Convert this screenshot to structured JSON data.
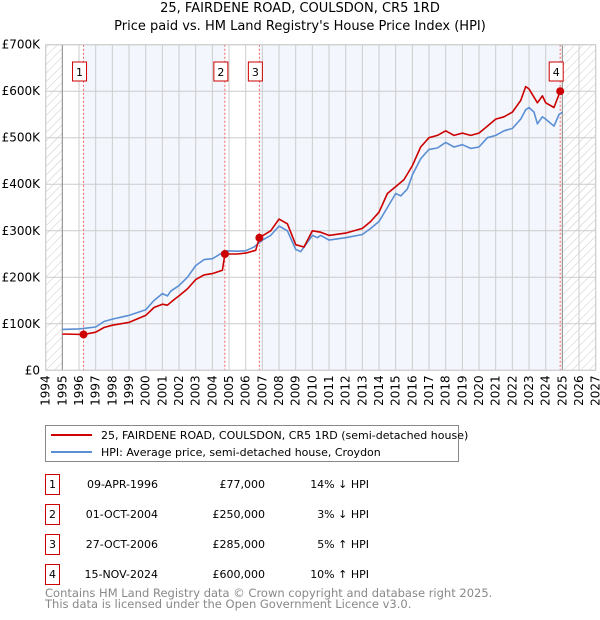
{
  "chart_data": {
    "type": "line",
    "title": "25, FAIRDENE ROAD, COULSDON, CR5 1RD",
    "subtitle": "Price paid vs. HM Land Registry's House Price Index (HPI)",
    "xlim": [
      1994,
      2027
    ],
    "ylim": [
      0,
      700000
    ],
    "x_ticks": [
      "1994",
      "1995",
      "1996",
      "1997",
      "1998",
      "1999",
      "2000",
      "2001",
      "2002",
      "2003",
      "2004",
      "2005",
      "2006",
      "2007",
      "2008",
      "2009",
      "2010",
      "2011",
      "2012",
      "2013",
      "2014",
      "2015",
      "2016",
      "2017",
      "2018",
      "2019",
      "2020",
      "2021",
      "2022",
      "2023",
      "2024",
      "2025",
      "2026",
      "2027"
    ],
    "y_ticks": [
      {
        "v": 0,
        "label": "£0"
      },
      {
        "v": 100000,
        "label": "£100K"
      },
      {
        "v": 200000,
        "label": "£200K"
      },
      {
        "v": 300000,
        "label": "£300K"
      },
      {
        "v": 400000,
        "label": "£400K"
      },
      {
        "v": 500000,
        "label": "£500K"
      },
      {
        "v": 600000,
        "label": "£600K"
      },
      {
        "v": 700000,
        "label": "£700K"
      }
    ],
    "grid": true,
    "data_range": [
      1995,
      2025
    ],
    "series": [
      {
        "name": "25, FAIRDENE ROAD, COULSDON, CR5 1RD (semi-detached house)",
        "color": "#cc0000",
        "x": [
          1995,
          1996.27,
          1997,
          1997.5,
          1998,
          1999,
          2000,
          2000.5,
          2001,
          2001.3,
          2001.7,
          2002,
          2002.5,
          2003,
          2003.5,
          2004,
          2004.6,
          2004.75,
          2005.5,
          2006,
          2006.6,
          2006.82,
          2007.5,
          2008,
          2008.5,
          2009,
          2009.5,
          2010,
          2010.5,
          2011,
          2012,
          2013,
          2013.5,
          2014,
          2014.5,
          2015,
          2015.5,
          2016,
          2016.5,
          2017,
          2017.5,
          2018,
          2018.5,
          2019,
          2019.5,
          2020,
          2020.5,
          2021,
          2021.5,
          2022,
          2022.5,
          2022.8,
          2023,
          2023.5,
          2023.8,
          2024,
          2024.5,
          2024.87
        ],
        "y": [
          78000,
          77000,
          82000,
          92000,
          97000,
          103000,
          118000,
          135000,
          142000,
          140000,
          152000,
          160000,
          175000,
          195000,
          205000,
          208000,
          215000,
          250000,
          250000,
          252000,
          258000,
          285000,
          300000,
          325000,
          315000,
          270000,
          265000,
          300000,
          297000,
          290000,
          295000,
          305000,
          320000,
          340000,
          380000,
          395000,
          410000,
          440000,
          480000,
          500000,
          505000,
          515000,
          505000,
          510000,
          505000,
          510000,
          525000,
          540000,
          545000,
          555000,
          580000,
          610000,
          605000,
          575000,
          590000,
          575000,
          565000,
          600000
        ]
      },
      {
        "name": "HPI: Average price, semi-detached house, Croydon",
        "color": "#5b8fd4",
        "x": [
          1995,
          1996,
          1997,
          1997.5,
          1998,
          1999,
          2000,
          2000.5,
          2001,
          2001.3,
          2001.5,
          2002,
          2002.5,
          2003,
          2003.5,
          2004,
          2004.8,
          2005.5,
          2006,
          2006.5,
          2007,
          2007.5,
          2008,
          2008.5,
          2009,
          2009.3,
          2010,
          2010.3,
          2010.5,
          2011,
          2012,
          2013,
          2013.5,
          2014,
          2014.5,
          2015,
          2015.3,
          2015.7,
          2016,
          2016.5,
          2017,
          2017.5,
          2018,
          2018.5,
          2019,
          2019.5,
          2020,
          2020.5,
          2021,
          2021.5,
          2022,
          2022.5,
          2022.8,
          2023,
          2023.3,
          2023.5,
          2023.8,
          2024,
          2024.5,
          2024.8,
          2025
        ],
        "y": [
          88000,
          89000,
          93000,
          105000,
          110000,
          118000,
          130000,
          150000,
          165000,
          160000,
          170000,
          182000,
          200000,
          225000,
          238000,
          240000,
          257000,
          256000,
          257000,
          265000,
          280000,
          290000,
          310000,
          300000,
          260000,
          255000,
          290000,
          285000,
          290000,
          280000,
          285000,
          292000,
          305000,
          320000,
          350000,
          380000,
          375000,
          390000,
          420000,
          455000,
          475000,
          478000,
          490000,
          480000,
          485000,
          477000,
          480000,
          500000,
          505000,
          515000,
          520000,
          540000,
          560000,
          565000,
          555000,
          530000,
          545000,
          540000,
          525000,
          550000,
          555000
        ]
      }
    ],
    "sales": [
      {
        "id": "1",
        "x": 1996.27,
        "price": 77000
      },
      {
        "id": "2",
        "x": 2004.75,
        "price": 250000
      },
      {
        "id": "3",
        "x": 2006.82,
        "price": 285000
      },
      {
        "id": "4",
        "x": 2024.87,
        "price": 600000
      }
    ]
  },
  "header": {
    "title": "25, FAIRDENE ROAD, COULSDON, CR5 1RD",
    "subtitle": "Price paid vs. HM Land Registry's House Price Index (HPI)"
  },
  "legend": {
    "property": "25, FAIRDENE ROAD, COULSDON, CR5 1RD (semi-detached house)",
    "hpi": "HPI: Average price, semi-detached house, Croydon"
  },
  "transactions": [
    {
      "num": "1",
      "date": "09-APR-1996",
      "price": "£77,000",
      "hpi": "14% ↓ HPI"
    },
    {
      "num": "2",
      "date": "01-OCT-2004",
      "price": "£250,000",
      "hpi": "3% ↓ HPI"
    },
    {
      "num": "3",
      "date": "27-OCT-2006",
      "price": "£285,000",
      "hpi": "5% ↑ HPI"
    },
    {
      "num": "4",
      "date": "15-NOV-2024",
      "price": "£600,000",
      "hpi": "10% ↑ HPI"
    }
  ],
  "footer": {
    "line1": "Contains HM Land Registry data © Crown copyright and database right 2025.",
    "line2": "This data is licensed under the Open Government Licence v3.0."
  }
}
